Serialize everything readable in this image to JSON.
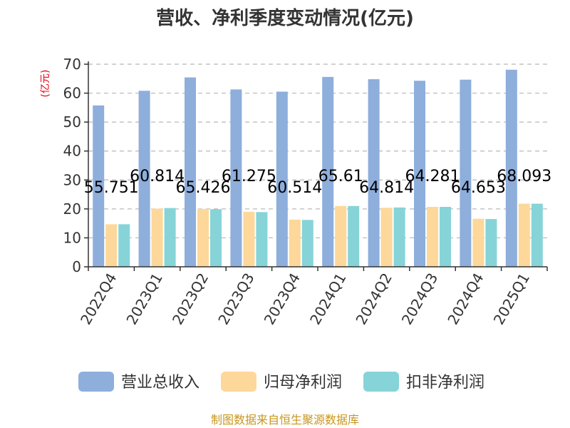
{
  "chart_data": {
    "type": "bar",
    "title": "营收、净利季度变动情况(亿元)",
    "ylabel": "(亿元)",
    "xlabel": "",
    "ylim": [
      0,
      70
    ],
    "yticks": [
      0,
      10,
      20,
      30,
      40,
      50,
      60,
      70
    ],
    "grid": true,
    "legend_position": "bottom",
    "categories": [
      "2022Q4",
      "2023Q1",
      "2023Q2",
      "2023Q3",
      "2023Q4",
      "2024Q1",
      "2024Q2",
      "2024Q3",
      "2024Q4",
      "2025Q1"
    ],
    "series": [
      {
        "name": "营业总收入",
        "color": "#8eaedc",
        "values": [
          55.751,
          60.814,
          65.426,
          61.275,
          60.514,
          65.61,
          64.814,
          64.281,
          64.653,
          68.093
        ],
        "labels": [
          "55.751",
          "60.814",
          "65.426",
          "61.275",
          "60.514",
          "65.61",
          "64.814",
          "64.281",
          "64.653",
          "68.093"
        ]
      },
      {
        "name": "归母净利润",
        "color": "#fdd89a",
        "values": [
          14.7,
          20.1,
          20.0,
          19.0,
          16.3,
          21.0,
          20.4,
          20.7,
          16.6,
          21.8
        ]
      },
      {
        "name": "扣非净利润",
        "color": "#86d4d8",
        "values": [
          14.7,
          20.3,
          19.9,
          18.9,
          16.2,
          21.0,
          20.5,
          20.7,
          16.5,
          21.8
        ]
      }
    ],
    "source": "制图数据来自恒生聚源数据库"
  }
}
